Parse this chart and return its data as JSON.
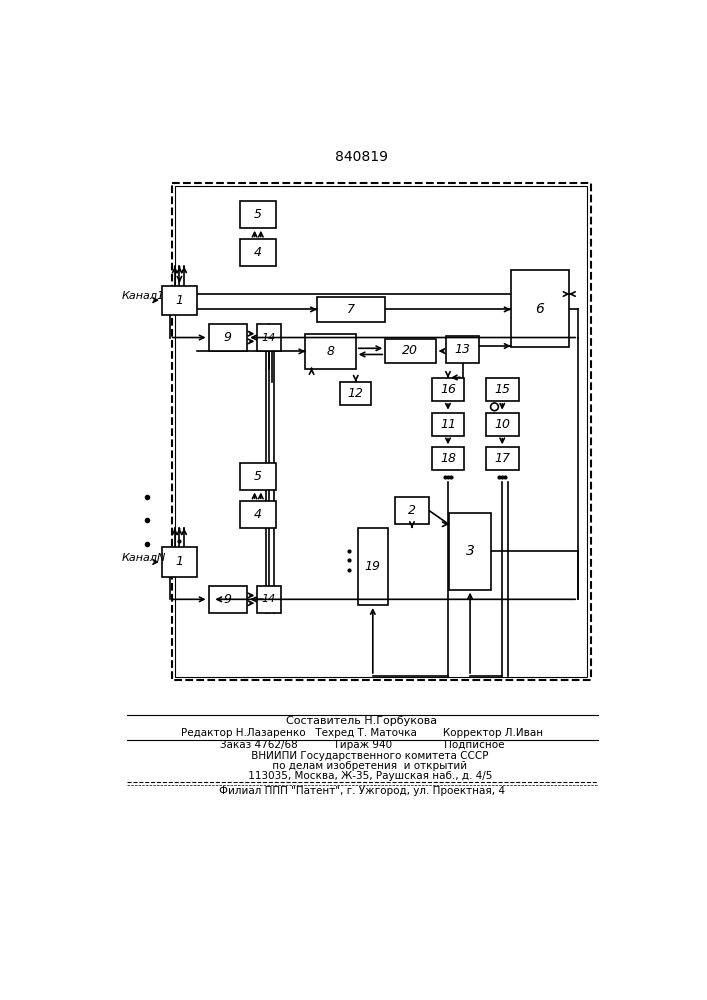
{
  "title": "840819",
  "bg_color": "#ffffff",
  "line_color": "#000000",
  "box_color": "#ffffff",
  "footer_lines": [
    "Составитель Н.Горбукова",
    "Редактор Н.Лазаренко   Техред Т. Маточка        Корректор Л.Иван",
    "Заказ 4762/68           Тираж 940                Подписное",
    "     ВНИИПИ Государственного комитета СССР",
    "     по делам изобретения  и открытий",
    "     113035, Москва, Ж-35, Раушская наб., д. 4/5",
    "Филиал ППП \"Патент\", г. Ужгород, ул. Проектная, 4"
  ]
}
